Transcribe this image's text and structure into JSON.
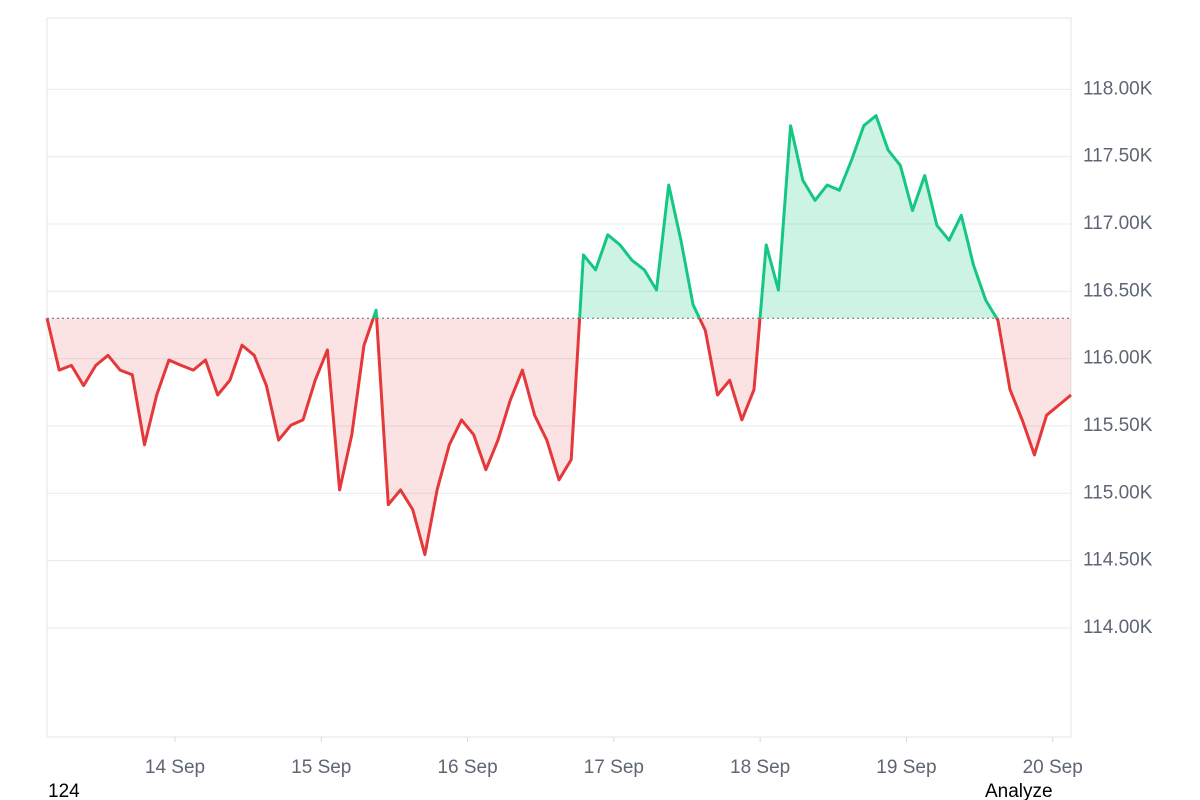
{
  "chart_data": {
    "type": "baseline-line",
    "x": [
      0,
      2,
      4,
      6,
      8,
      10,
      12,
      14,
      16,
      18,
      20,
      22,
      24,
      26,
      28,
      30,
      32,
      34,
      36,
      38,
      40,
      42,
      44,
      46,
      48,
      50,
      52,
      54,
      56,
      58,
      60,
      62,
      64,
      66,
      68,
      70,
      72,
      74,
      76,
      78,
      80,
      82,
      84,
      86,
      88,
      90,
      92,
      94,
      96,
      98,
      100,
      102,
      104,
      106,
      108,
      110,
      112,
      114,
      116,
      118,
      120,
      122,
      124,
      126,
      128,
      130,
      132,
      134,
      136,
      138,
      140,
      142,
      144,
      146,
      148,
      150,
      152,
      154,
      156,
      158,
      160,
      162,
      164,
      166,
      168
    ],
    "values": [
      116300,
      115915,
      115950,
      115800,
      115950,
      116025,
      115915,
      115880,
      115360,
      115730,
      115990,
      115950,
      115915,
      115990,
      115730,
      115840,
      116100,
      116025,
      115800,
      115395,
      115505,
      115545,
      115840,
      116065,
      115025,
      115435,
      116100,
      116360,
      114915,
      115025,
      114880,
      114545,
      115025,
      115360,
      115545,
      115435,
      115175,
      115395,
      115690,
      115915,
      115580,
      115395,
      115100,
      115250,
      116770,
      116660,
      116920,
      116845,
      116730,
      116660,
      116510,
      117290,
      116880,
      116400,
      116210,
      115730,
      115840,
      115545,
      115770,
      116845,
      116510,
      117730,
      117325,
      117175,
      117290,
      117250,
      117475,
      117730,
      117805,
      117550,
      117435,
      117100,
      117360,
      116990,
      116880,
      117065,
      116695,
      116435,
      116285,
      115770,
      115545,
      115285,
      115580,
      115655,
      115730
    ],
    "baseline": 116300,
    "up_color": "#16c784",
    "down_color": "#e5383b",
    "xlim": [
      0,
      168
    ],
    "xticks": [
      {
        "value": 21,
        "label": "14 Sep"
      },
      {
        "value": 45,
        "label": "15 Sep"
      },
      {
        "value": 69,
        "label": "16 Sep"
      },
      {
        "value": 93,
        "label": "17 Sep"
      },
      {
        "value": 117,
        "label": "18 Sep"
      },
      {
        "value": 141,
        "label": "19 Sep"
      },
      {
        "value": 165,
        "label": "20 Sep"
      }
    ],
    "ylim": [
      113190,
      118530
    ],
    "yticks": [
      {
        "value": 114000,
        "label": "114.00K"
      },
      {
        "value": 114500,
        "label": "114.50K"
      },
      {
        "value": 115000,
        "label": "115.00K"
      },
      {
        "value": 115500,
        "label": "115.50K"
      },
      {
        "value": 116000,
        "label": "116.00K"
      },
      {
        "value": 116500,
        "label": "116.50K"
      },
      {
        "value": 117000,
        "label": "117.00K"
      },
      {
        "value": 117500,
        "label": "117.50K"
      },
      {
        "value": 118000,
        "label": "118.00K"
      }
    ],
    "grid": true
  },
  "footer": {
    "left": "124",
    "right": "Analyze"
  }
}
